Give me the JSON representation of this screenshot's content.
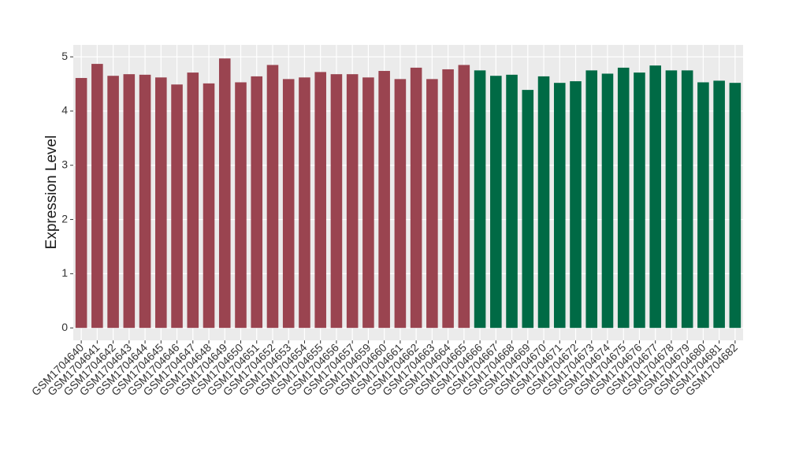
{
  "chart_data": {
    "type": "bar",
    "y_label": "Expression Level",
    "categories": [
      "GSM1704640",
      "GSM1704641",
      "GSM1704642",
      "GSM1704643",
      "GSM1704644",
      "GSM1704645",
      "GSM1704646",
      "GSM1704647",
      "GSM1704648",
      "GSM1704649",
      "GSM1704650",
      "GSM1704651",
      "GSM1704652",
      "GSM1704653",
      "GSM1704654",
      "GSM1704655",
      "GSM1704656",
      "GSM1704657",
      "GSM1704659",
      "GSM1704660",
      "GSM1704661",
      "GSM1704662",
      "GSM1704663",
      "GSM1704664",
      "GSM1704665",
      "GSM1704666",
      "GSM1704667",
      "GSM1704668",
      "GSM1704669",
      "GSM1704670",
      "GSM1704671",
      "GSM1704672",
      "GSM1704673",
      "GSM1704674",
      "GSM1704675",
      "GSM1704676",
      "GSM1704677",
      "GSM1704678",
      "GSM1704679",
      "GSM1704680",
      "GSM1704681",
      "GSM1704682"
    ],
    "values": [
      4.61,
      4.87,
      4.65,
      4.68,
      4.67,
      4.62,
      4.49,
      4.71,
      4.51,
      4.97,
      4.53,
      4.64,
      4.85,
      4.59,
      4.62,
      4.72,
      4.68,
      4.68,
      4.62,
      4.74,
      4.59,
      4.8,
      4.59,
      4.77,
      4.85,
      4.75,
      4.65,
      4.67,
      4.39,
      4.64,
      4.52,
      4.55,
      4.75,
      4.69,
      4.8,
      4.71,
      4.84,
      4.75,
      4.75,
      4.53,
      4.56,
      4.52
    ],
    "colors": [
      "#9a4450",
      "#9a4450",
      "#9a4450",
      "#9a4450",
      "#9a4450",
      "#9a4450",
      "#9a4450",
      "#9a4450",
      "#9a4450",
      "#9a4450",
      "#9a4450",
      "#9a4450",
      "#9a4450",
      "#9a4450",
      "#9a4450",
      "#9a4450",
      "#9a4450",
      "#9a4450",
      "#9a4450",
      "#9a4450",
      "#9a4450",
      "#9a4450",
      "#9a4450",
      "#9a4450",
      "#9a4450",
      "#006a45",
      "#006a45",
      "#006a45",
      "#006a45",
      "#006a45",
      "#006a45",
      "#006a45",
      "#006a45",
      "#006a45",
      "#006a45",
      "#006a45",
      "#006a45",
      "#006a45",
      "#006a45",
      "#006a45",
      "#006a45",
      "#006a45"
    ],
    "ylim": [
      -0.23,
      5.22
    ],
    "yticks": [
      0,
      1,
      2,
      3,
      4,
      5
    ],
    "grid": true
  }
}
